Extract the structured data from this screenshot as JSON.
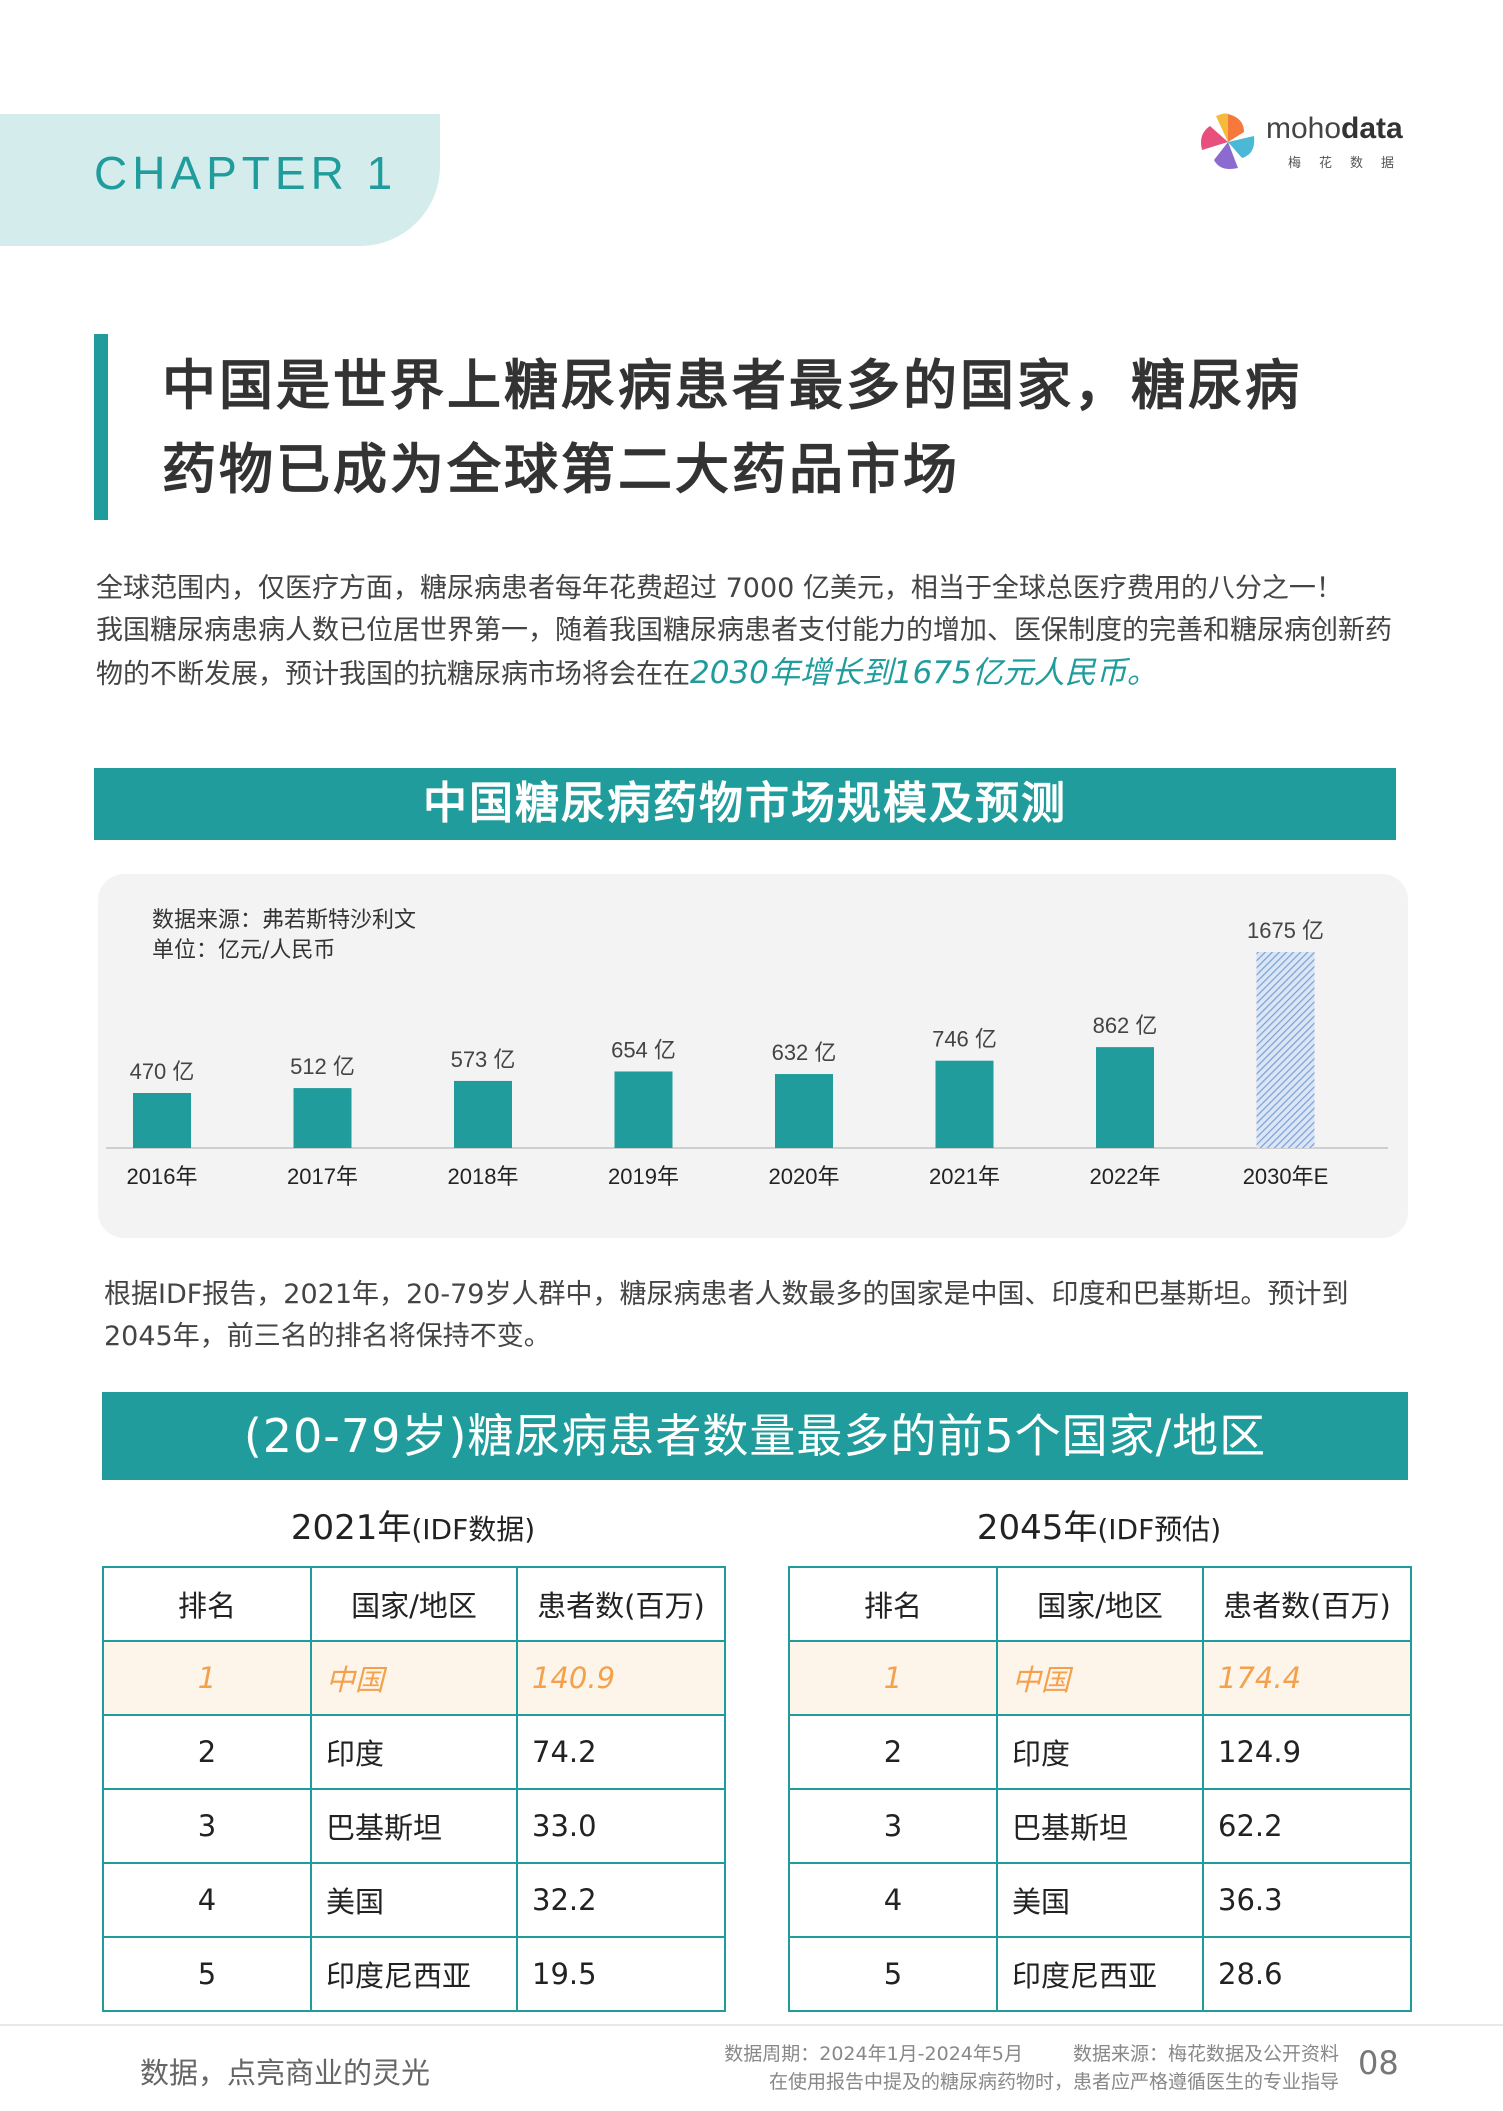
{
  "header": {
    "chapter": "CHAPTER 1",
    "brand_light": "moho",
    "brand_bold": "data",
    "brand_sub": "梅花数据"
  },
  "title": {
    "line1": "中国是世界上糖尿病患者最多的国家，糖尿病",
    "line2": "药物已成为全球第二大药品市场"
  },
  "intro": {
    "p1": "全球范围内，仅医疗方面，糖尿病患者每年花费超过 7000 亿美元，相当于全球总医疗费用的八分之一！",
    "p2_start": "我国糖尿病患病人数已位居世界第一，随着我国糖尿病患者支付能力的增加、医保制度的完善和糖尿病创新药物的不断发展，预计我国的抗糖尿病市场将会在在",
    "p2_highlight": "2030年增长到1675亿元人民币。"
  },
  "chart_banner": "中国糖尿病药物市场规模及预测",
  "chart_notes": {
    "source": "数据来源：弗若斯特沙利文",
    "unit": "单位：亿元/人民币"
  },
  "chart_data": {
    "type": "bar",
    "title": "中国糖尿病药物市场规模及预测",
    "categories": [
      "2016年",
      "2017年",
      "2018年",
      "2019年",
      "2020年",
      "2021年",
      "2022年",
      "2030年E"
    ],
    "values": [
      470,
      512,
      573,
      654,
      632,
      746,
      862,
      1675
    ],
    "labels": [
      "470 亿",
      "512 亿",
      "573 亿",
      "654 亿",
      "632 亿",
      "746 亿",
      "862 亿",
      "1675 亿"
    ],
    "forecast_index": 7,
    "color": "#1f9c9b",
    "forecast_color": "#8fb0dc",
    "ylim": [
      0,
      1675
    ],
    "grid": false
  },
  "para2": "根据IDF报告，2021年，20-79岁人群中，糖尿病患者人数最多的国家是中国、印度和巴基斯坦。预计到2045年，前三名的排名将保持不变。",
  "rank_banner": "(20-79岁)糖尿病患者数量最多的前5个国家/地区",
  "tables": {
    "left": {
      "year": "2021年",
      "src": "(IDF数据)",
      "headers": [
        "排名",
        "国家/地区",
        "患者数(百万)"
      ],
      "rows": [
        [
          "1",
          "中国",
          "140.9"
        ],
        [
          "2",
          "印度",
          "74.2"
        ],
        [
          "3",
          "巴基斯坦",
          "33.0"
        ],
        [
          "4",
          "美国",
          "32.2"
        ],
        [
          "5",
          "印度尼西亚",
          "19.5"
        ]
      ]
    },
    "right": {
      "year": "2045年",
      "src": "(IDF预估)",
      "headers": [
        "排名",
        "国家/地区",
        "患者数(百万)"
      ],
      "rows": [
        [
          "1",
          "中国",
          "174.4"
        ],
        [
          "2",
          "印度",
          "124.9"
        ],
        [
          "3",
          "巴基斯坦",
          "62.2"
        ],
        [
          "4",
          "美国",
          "36.3"
        ],
        [
          "5",
          "印度尼西亚",
          "28.6"
        ]
      ]
    }
  },
  "footer": {
    "slogan": "数据，点亮商业的灵光",
    "period": "数据周期：2024年1月-2024年5月",
    "source": "数据来源：梅花数据及公开资料",
    "disclaimer": "在使用报告中提及的糖尿病药物时，患者应严格遵循医生的专业指导",
    "page": "08"
  }
}
